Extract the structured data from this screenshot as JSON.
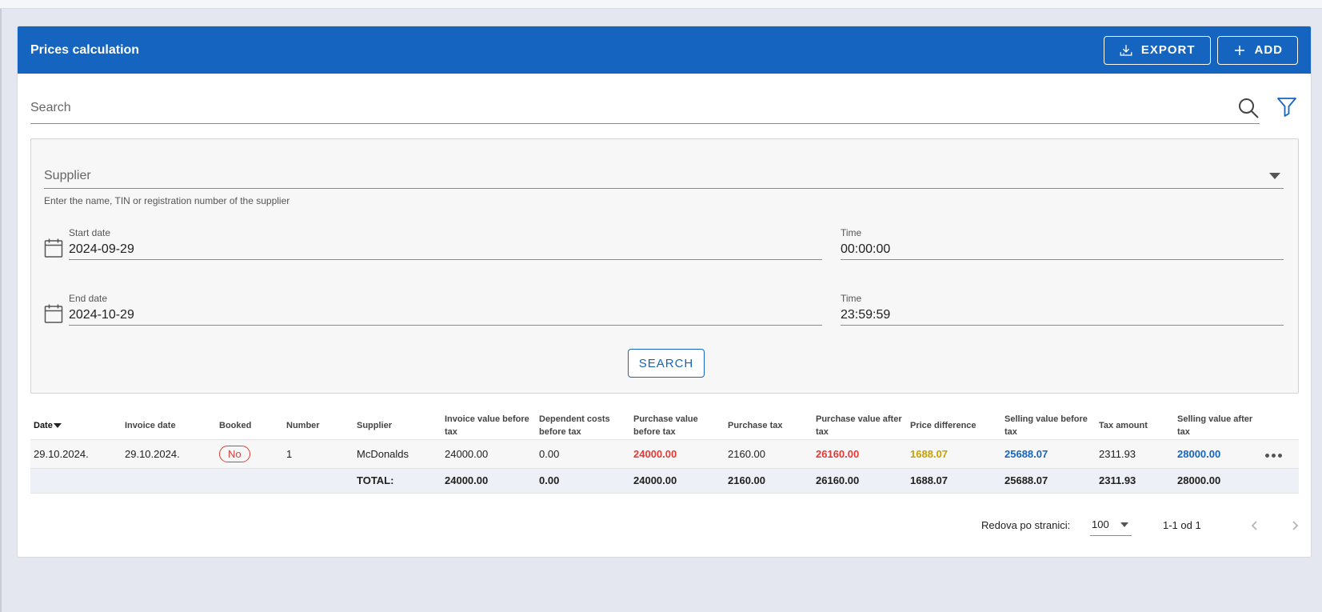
{
  "header": {
    "title": "Prices calculation",
    "export_label": "EXPORT",
    "add_label": "ADD"
  },
  "search": {
    "placeholder": "Search"
  },
  "filters": {
    "supplier_label": "Supplier",
    "supplier_helper": "Enter the name, TIN or registration number of the supplier",
    "start_date_label": "Start date",
    "start_date_value": "2024-09-29",
    "start_time_label": "Time",
    "start_time_value": "00:00:00",
    "end_date_label": "End date",
    "end_date_value": "2024-10-29",
    "end_time_label": "Time",
    "end_time_value": "23:59:59",
    "search_button": "SEARCH"
  },
  "table": {
    "columns": [
      "Date",
      "Invoice date",
      "Booked",
      "Number",
      "Supplier",
      "Invoice value before tax",
      "Dependent costs before tax",
      "Purchase value before tax",
      "Purchase tax",
      "Purchase value after tax",
      "Price difference",
      "Selling value before tax",
      "Tax amount",
      "Selling value after tax"
    ],
    "rows": [
      {
        "date": "29.10.2024.",
        "invoice_date": "29.10.2024.",
        "booked": "No",
        "number": "1",
        "supplier": "McDonalds",
        "invoice_value": "24000.00",
        "dependent_costs": "0.00",
        "purchase_value": "24000.00",
        "purchase_tax": "2160.00",
        "purchase_value_after": "26160.00",
        "price_difference": "1688.07",
        "selling_value_before": "25688.07",
        "tax_amount": "2311.93",
        "selling_value_after": "28000.00"
      }
    ],
    "totals": {
      "label": "TOTAL:",
      "invoice_value": "24000.00",
      "dependent_costs": "0.00",
      "purchase_value": "24000.00",
      "purchase_tax": "2160.00",
      "purchase_value_after": "26160.00",
      "price_difference": "1688.07",
      "selling_value_before": "25688.07",
      "tax_amount": "2311.93",
      "selling_value_after": "28000.00"
    }
  },
  "pagination": {
    "rows_per_page_label": "Redova po stranici:",
    "rows_per_page_value": "100",
    "range": "1-1 od 1"
  },
  "colors": {
    "primary": "#1565c0",
    "negative": "#e53935",
    "difference": "#c8a000"
  }
}
